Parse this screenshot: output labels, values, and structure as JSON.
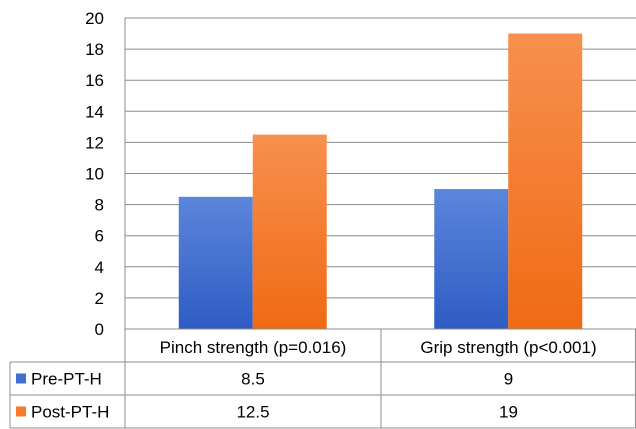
{
  "chart_data": {
    "type": "bar",
    "categories": [
      "Pinch strength (p=0.016)",
      "Grip strength (p<0.001)"
    ],
    "series": [
      {
        "name": "Pre-PT-H",
        "values": [
          8.5,
          9
        ],
        "color": "#3f6fd0"
      },
      {
        "name": "Post-PT-H",
        "values": [
          12.5,
          19
        ],
        "color": "#f57a2a"
      }
    ],
    "table": {
      "rows": [
        {
          "label": "Pre-PT-H",
          "cells": [
            "8.5",
            "9"
          ]
        },
        {
          "label": "Post-PT-H",
          "cells": [
            "12.5",
            "19"
          ]
        }
      ]
    },
    "ylim": [
      0,
      20
    ],
    "yticks": [
      "0",
      "2",
      "4",
      "6",
      "8",
      "10",
      "12",
      "14",
      "16",
      "18",
      "20"
    ],
    "grid": true,
    "legend": "data-table-left",
    "title": "",
    "xlabel": "",
    "ylabel": ""
  }
}
